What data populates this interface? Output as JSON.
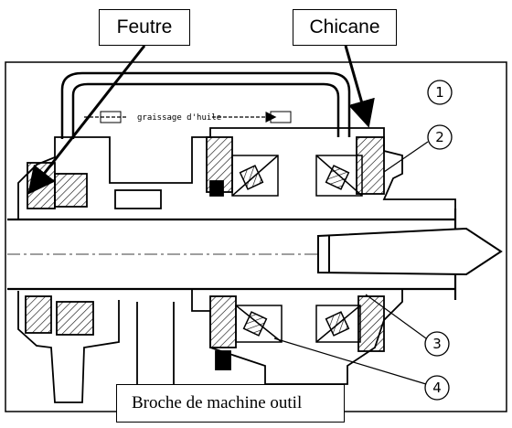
{
  "callouts": {
    "feutre": "Feutre",
    "chicane": "Chicane"
  },
  "figure": {
    "caption": "Broche de machine outil",
    "pipe_label": "graissage d'huile",
    "markers": [
      "1",
      "2",
      "3",
      "4"
    ]
  }
}
